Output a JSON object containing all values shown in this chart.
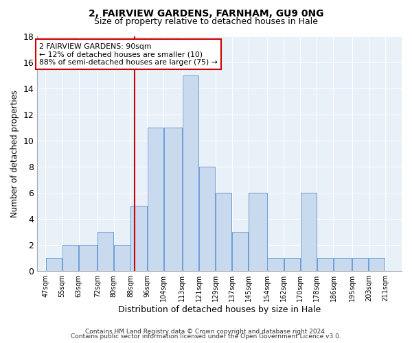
{
  "title": "2, FAIRVIEW GARDENS, FARNHAM, GU9 0NG",
  "subtitle": "Size of property relative to detached houses in Hale",
  "xlabel": "Distribution of detached houses by size in Hale",
  "ylabel": "Number of detached properties",
  "bar_left_edges": [
    47,
    55,
    63,
    72,
    80,
    88,
    96,
    104,
    113,
    121,
    129,
    137,
    145,
    154,
    162,
    170,
    178,
    186,
    195,
    203
  ],
  "bar_widths": [
    8,
    8,
    9,
    8,
    8,
    8,
    8,
    9,
    8,
    8,
    8,
    8,
    9,
    8,
    8,
    8,
    8,
    9,
    8,
    8
  ],
  "bar_heights": [
    1,
    2,
    2,
    3,
    2,
    5,
    11,
    11,
    15,
    8,
    6,
    3,
    6,
    1,
    1,
    6,
    1,
    1,
    1,
    1
  ],
  "tick_labels": [
    "47sqm",
    "55sqm",
    "63sqm",
    "72sqm",
    "80sqm",
    "88sqm",
    "96sqm",
    "104sqm",
    "113sqm",
    "121sqm",
    "129sqm",
    "137sqm",
    "145sqm",
    "154sqm",
    "162sqm",
    "170sqm",
    "178sqm",
    "186sqm",
    "195sqm",
    "203sqm",
    "211sqm"
  ],
  "tick_positions": [
    47,
    55,
    63,
    72,
    80,
    88,
    96,
    104,
    113,
    121,
    129,
    137,
    145,
    154,
    162,
    170,
    178,
    186,
    195,
    203,
    211
  ],
  "bar_color": "#c9d9ee",
  "bar_edge_color": "#6a9fd8",
  "vline_x": 90,
  "vline_color": "#cc0000",
  "annotation_text": "2 FAIRVIEW GARDENS: 90sqm\n← 12% of detached houses are smaller (10)\n88% of semi-detached houses are larger (75) →",
  "annotation_box_color": "#ffffff",
  "annotation_box_edge": "#cc0000",
  "ylim": [
    0,
    18
  ],
  "yticks": [
    0,
    2,
    4,
    6,
    8,
    10,
    12,
    14,
    16,
    18
  ],
  "xlim": [
    43,
    219
  ],
  "tick_positions_end": 211,
  "footer1": "Contains HM Land Registry data © Crown copyright and database right 2024.",
  "footer2": "Contains public sector information licensed under the Open Government Licence v3.0.",
  "bg_color": "#ffffff",
  "plot_bg_color": "#e8f0f8",
  "grid_color": "#ffffff",
  "title_fontsize": 10,
  "subtitle_fontsize": 9
}
